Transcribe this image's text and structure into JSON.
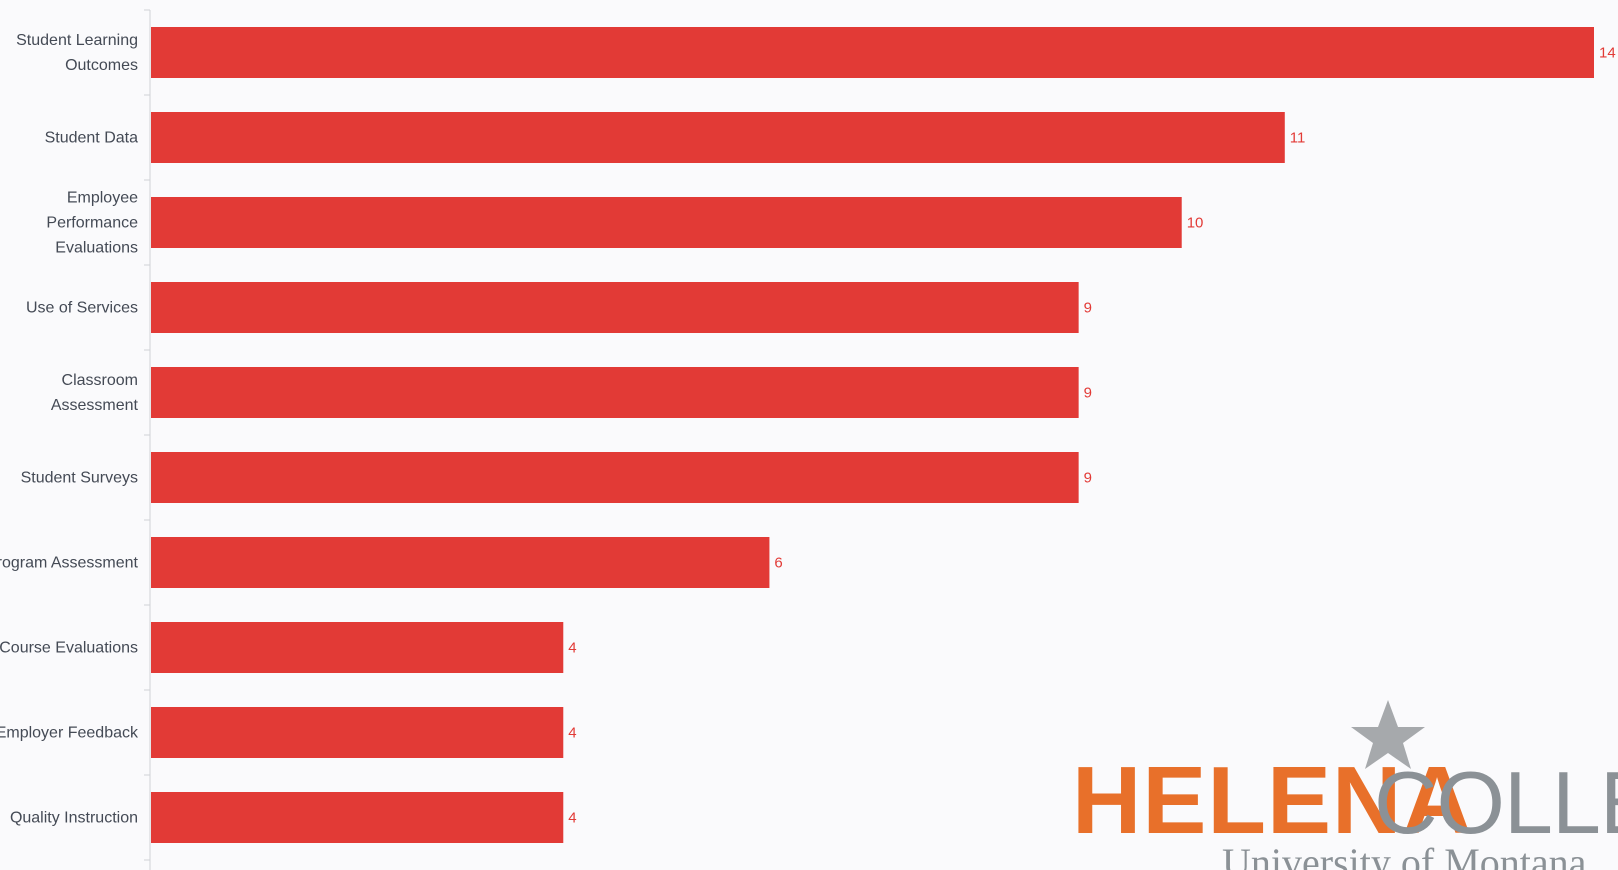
{
  "chart_data": {
    "type": "bar",
    "orientation": "horizontal",
    "categories": [
      [
        "Student Learning",
        "Outcomes"
      ],
      [
        "Student Data"
      ],
      [
        "Employee",
        "Performance",
        "Evaluations"
      ],
      [
        "Use of Services"
      ],
      [
        "Classroom",
        "Assessment"
      ],
      [
        "Student Surveys"
      ],
      [
        "Program Assessment"
      ],
      [
        "Course Evaluations"
      ],
      [
        "Employer Feedback"
      ],
      [
        "Quality Instruction"
      ]
    ],
    "values": [
      14,
      11,
      10,
      9,
      9,
      9,
      6,
      4,
      4,
      4
    ],
    "xlim": [
      0,
      14
    ],
    "grid": false,
    "bar_color": "#e23a36",
    "value_label_color": "#e23a36"
  },
  "logo": {
    "word1": "HELENA",
    "word2": "COLLEGE",
    "subtitle": "University of Montana",
    "orange": "#e8702a",
    "gray": "#8b9196",
    "star_color": "#a6a9ac"
  }
}
